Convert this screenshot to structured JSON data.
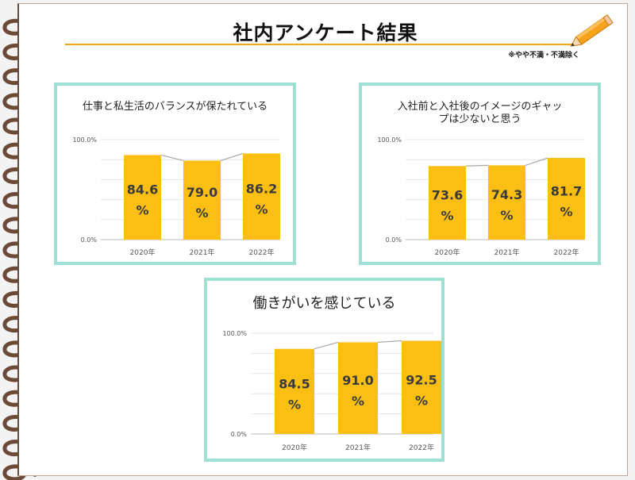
{
  "title": "社内アンケート結果",
  "note": "※やや不満・不満除く",
  "chart_data": [
    {
      "type": "bar",
      "title": "仕事と私生活のバランスが保たれている",
      "categories": [
        "2020年",
        "2021年",
        "2022年"
      ],
      "values": [
        84.6,
        79.0,
        86.2
      ],
      "value_labels": [
        "84.6",
        "79.0",
        "86.2"
      ],
      "value_unit": "%",
      "yticks": [
        "0.0%",
        "100.0%"
      ],
      "ylim": [
        0,
        100
      ],
      "bar_color": "#fbbf14",
      "grid": true
    },
    {
      "type": "bar",
      "title": "入社前と入社後のイメージのギャップは少ないと思う",
      "categories": [
        "2020年",
        "2021年",
        "2022年"
      ],
      "values": [
        73.6,
        74.3,
        81.7
      ],
      "value_labels": [
        "73.6",
        "74.3",
        "81.7"
      ],
      "value_unit": "%",
      "yticks": [
        "0.0%",
        "100.0%"
      ],
      "ylim": [
        0,
        100
      ],
      "bar_color": "#fbbf14",
      "grid": true
    },
    {
      "type": "bar",
      "title": "働きがいを感じている",
      "categories": [
        "2020年",
        "2021年",
        "2022年"
      ],
      "values": [
        84.5,
        91.0,
        92.5
      ],
      "value_labels": [
        "84.5",
        "91.0",
        "92.5"
      ],
      "value_unit": "%",
      "yticks": [
        "0.0%",
        "100.0%"
      ],
      "ylim": [
        0,
        100
      ],
      "bar_color": "#fbbf14",
      "grid": true
    }
  ],
  "colors": {
    "accent_orange": "#f7a21b",
    "card_border": "#9fe0d3",
    "ring_brown": "#6b4a38"
  },
  "icons": [
    "spiral-ring-icon",
    "pencil-icon"
  ]
}
